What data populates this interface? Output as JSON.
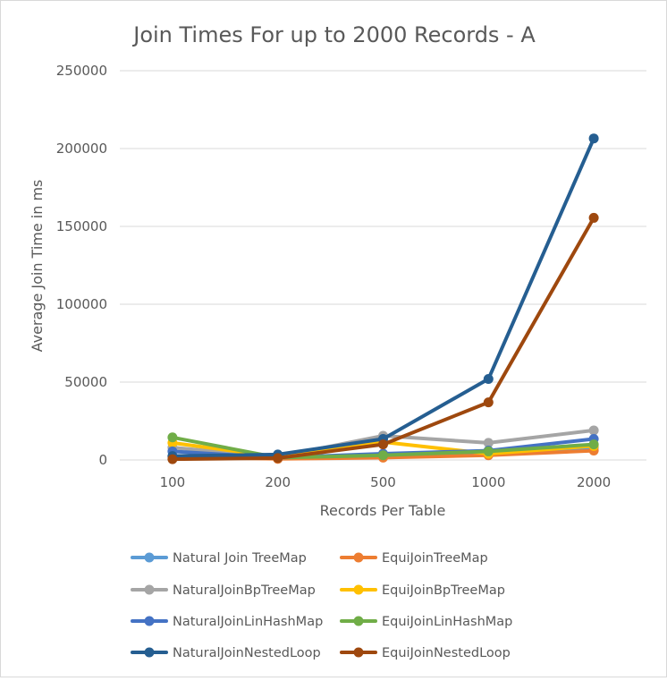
{
  "chart_data": {
    "type": "line",
    "title": "Join Times For up to 2000 Records - A",
    "xlabel": "Records Per Table",
    "ylabel": "Average Join Time in ms",
    "categories": [
      "100",
      "200",
      "500",
      "1000",
      "2000"
    ],
    "ylim": [
      0,
      250000
    ],
    "yticks": [
      "0",
      "50000",
      "100000",
      "150000",
      "200000",
      "250000"
    ],
    "grid": true,
    "legend_position": "bottom",
    "series": [
      {
        "name": "Natural Join TreeMap",
        "color": "#5b9bd5",
        "values": [
          2500,
          800,
          2500,
          4000,
          8000
        ]
      },
      {
        "name": "EquiJoinTreeMap",
        "color": "#ed7d31",
        "values": [
          2000,
          700,
          1500,
          3000,
          6000
        ]
      },
      {
        "name": "NaturalJoinBpTreeMap",
        "color": "#a5a5a5",
        "values": [
          8000,
          2000,
          15500,
          11000,
          19000
        ]
      },
      {
        "name": "EquiJoinBpTreeMap",
        "color": "#ffc000",
        "values": [
          11000,
          2000,
          11500,
          4000,
          9000
        ]
      },
      {
        "name": "NaturalJoinLinHashMap",
        "color": "#4472c4",
        "values": [
          5500,
          1500,
          4000,
          6000,
          13500
        ]
      },
      {
        "name": "EquiJoinLinHashMap",
        "color": "#70ad47",
        "values": [
          14500,
          1500,
          3000,
          5500,
          10000
        ]
      },
      {
        "name": "NaturalJoinNestedLoop",
        "color": "#255e91",
        "values": [
          2500,
          3500,
          13500,
          52000,
          206500
        ]
      },
      {
        "name": "EquiJoinNestedLoop",
        "color": "#9e480e",
        "values": [
          500,
          1200,
          10000,
          37000,
          155500
        ]
      }
    ]
  }
}
